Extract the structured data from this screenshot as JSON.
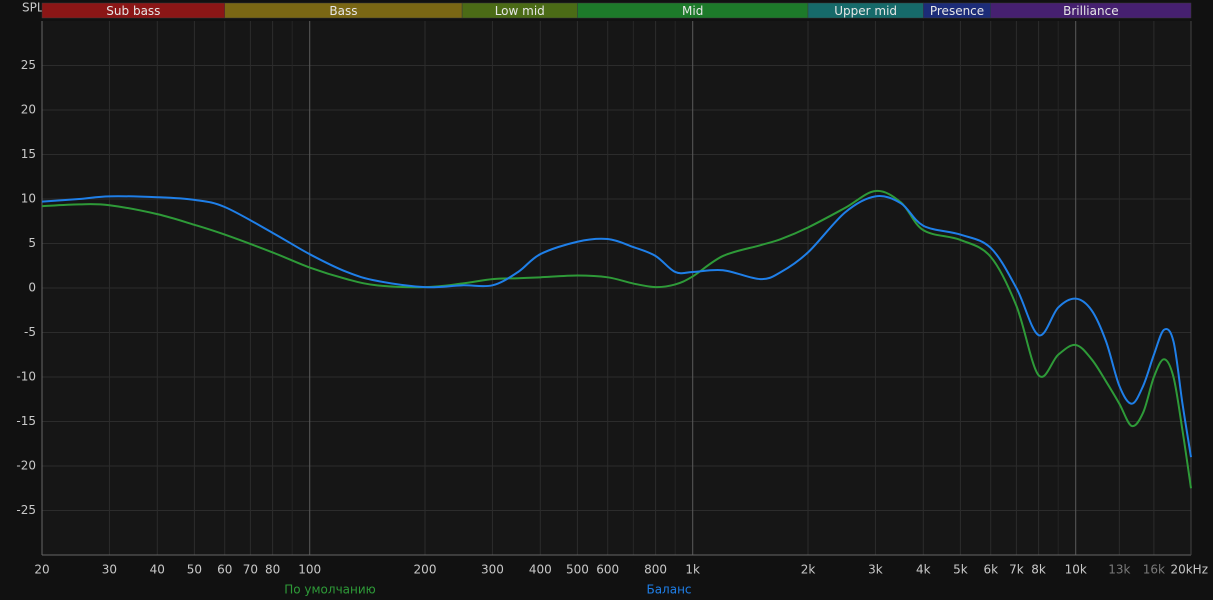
{
  "chart_data": {
    "type": "line",
    "ylabel": "SPL",
    "xscale": "log",
    "xlim": [
      20,
      20000
    ],
    "ylim": [
      -30,
      30
    ],
    "yticks": [
      -25,
      -20,
      -15,
      -10,
      -5,
      0,
      5,
      10,
      15,
      20,
      25
    ],
    "xticks": [
      20,
      30,
      40,
      50,
      60,
      70,
      80,
      100,
      200,
      300,
      400,
      500,
      600,
      800,
      {
        "value": 1000,
        "label": "1k"
      },
      {
        "value": 2000,
        "label": "2k"
      },
      {
        "value": 3000,
        "label": "3k"
      },
      {
        "value": 4000,
        "label": "4k"
      },
      {
        "value": 5000,
        "label": "5k"
      },
      {
        "value": 6000,
        "label": "6k"
      },
      {
        "value": 7000,
        "label": "7k"
      },
      {
        "value": 8000,
        "label": "8k"
      },
      {
        "value": 10000,
        "label": "10k"
      },
      {
        "value": 13000,
        "label": "13k",
        "muted": true
      },
      {
        "value": 16000,
        "label": "16k",
        "muted": true
      },
      {
        "value": 20000,
        "label": "20kHz"
      }
    ],
    "minor_xticks": [
      90,
      700,
      900,
      9000
    ],
    "grid": true,
    "bands": [
      {
        "name": "Sub bass",
        "from": 20,
        "to": 60,
        "color": "#8b1616"
      },
      {
        "name": "Bass",
        "from": 60,
        "to": 250,
        "color": "#7a6714"
      },
      {
        "name": "Low mid",
        "from": 250,
        "to": 500,
        "color": "#4b6b16"
      },
      {
        "name": "Mid",
        "from": 500,
        "to": 2000,
        "color": "#1d7a2a"
      },
      {
        "name": "Upper mid",
        "from": 2000,
        "to": 4000,
        "color": "#166a6a"
      },
      {
        "name": "Presence",
        "from": 4000,
        "to": 6000,
        "color": "#1c2c78"
      },
      {
        "name": "Brilliance",
        "from": 6000,
        "to": 20000,
        "color": "#462070"
      }
    ],
    "x": [
      20,
      25,
      30,
      40,
      50,
      60,
      80,
      100,
      125,
      150,
      200,
      250,
      300,
      350,
      400,
      500,
      600,
      700,
      800,
      900,
      1000,
      1200,
      1500,
      1700,
      2000,
      2500,
      3000,
      3500,
      4000,
      5000,
      6000,
      7000,
      8000,
      9000,
      10000,
      11000,
      12000,
      13000,
      14000,
      15000,
      16000,
      17000,
      18000,
      19000,
      20000
    ],
    "series": [
      {
        "name": "По умолчанию",
        "color": "#2e9a38",
        "values": [
          9.2,
          9.4,
          9.3,
          8.3,
          7.1,
          6.0,
          4.0,
          2.3,
          1.0,
          0.3,
          0.1,
          0.5,
          1.0,
          1.1,
          1.2,
          1.4,
          1.2,
          0.5,
          0.1,
          0.4,
          1.3,
          3.6,
          4.8,
          5.5,
          6.8,
          9.0,
          10.9,
          9.6,
          6.5,
          5.4,
          3.5,
          -2,
          -9.8,
          -7.5,
          -6.4,
          -8,
          -10.5,
          -13,
          -15.5,
          -14,
          -10,
          -8,
          -10,
          -16,
          -22.5
        ]
      },
      {
        "name": "Баланс",
        "color": "#1f7fe8",
        "values": [
          9.7,
          10.0,
          10.3,
          10.2,
          9.9,
          9.1,
          6.2,
          3.8,
          1.8,
          0.8,
          0.1,
          0.3,
          0.3,
          1.8,
          3.8,
          5.2,
          5.5,
          4.6,
          3.6,
          1.8,
          1.8,
          2.0,
          1.0,
          1.8,
          4.0,
          8.5,
          10.3,
          9.5,
          7.0,
          6.0,
          4.5,
          0,
          -5.3,
          -2.2,
          -1.2,
          -2.5,
          -6,
          -11,
          -13,
          -11,
          -7.5,
          -4.7,
          -6,
          -13,
          -19
        ]
      }
    ]
  }
}
